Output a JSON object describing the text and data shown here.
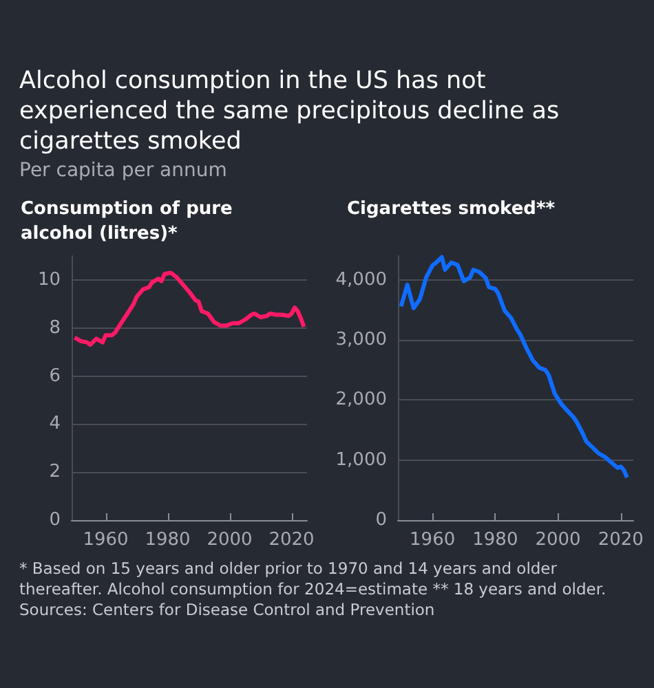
{
  "chart_data": [
    {
      "type": "line",
      "title": "Alcohol consumption in the US has not experienced the same precipitous decline as cigarettes smoked",
      "subtitle": "Per capita per annum",
      "ylabel": "Consumption of pure alcohol (litres)*",
      "color": "#ff1a66",
      "grid": "y",
      "xlim": [
        1949,
        2025
      ],
      "xticks": [
        1960,
        1980,
        2000,
        2020
      ],
      "ylim": [
        0,
        11
      ],
      "yticks": [
        0,
        2,
        4,
        6,
        8,
        10
      ],
      "x": [
        1950,
        1952,
        1954,
        1955,
        1957,
        1959,
        1960,
        1962,
        1963,
        1965,
        1967,
        1969,
        1970,
        1972,
        1974,
        1975,
        1977,
        1978,
        1979,
        1981,
        1983,
        1985,
        1987,
        1989,
        1990,
        1991,
        1993,
        1995,
        1997,
        1999,
        2001,
        2003,
        2005,
        2007,
        2008,
        2010,
        2012,
        2013,
        2015,
        2017,
        2019,
        2020,
        2021,
        2022,
        2023,
        2024
      ],
      "values": [
        7.6,
        7.45,
        7.4,
        7.3,
        7.55,
        7.4,
        7.7,
        7.7,
        7.8,
        8.2,
        8.6,
        9.0,
        9.3,
        9.6,
        9.7,
        9.9,
        10.05,
        9.95,
        10.25,
        10.3,
        10.1,
        9.8,
        9.5,
        9.15,
        9.1,
        8.7,
        8.6,
        8.25,
        8.1,
        8.1,
        8.2,
        8.2,
        8.35,
        8.55,
        8.6,
        8.45,
        8.5,
        8.6,
        8.55,
        8.55,
        8.5,
        8.6,
        8.85,
        8.7,
        8.4,
        8.05
      ]
    },
    {
      "type": "line",
      "ylabel": "Cigarettes smoked**",
      "color": "#0f6cff",
      "grid": "y",
      "xlim": [
        1949,
        2024
      ],
      "xticks": [
        1960,
        1980,
        2000,
        2020
      ],
      "ylim": [
        0,
        4400
      ],
      "yticks": [
        0,
        {
          "value": 1000,
          "label": "1,000"
        },
        {
          "value": 2000,
          "label": "2,000"
        },
        {
          "value": 3000,
          "label": "3,000"
        },
        {
          "value": 4000,
          "label": "4,000"
        }
      ],
      "x": [
        1950,
        1952,
        1954,
        1956,
        1958,
        1960,
        1961,
        1963,
        1964,
        1966,
        1968,
        1970,
        1972,
        1973,
        1975,
        1977,
        1978,
        1980,
        1981,
        1983,
        1985,
        1987,
        1988,
        1990,
        1992,
        1994,
        1996,
        1997,
        1998,
        1999,
        2001,
        2003,
        2005,
        2006,
        2008,
        2009,
        2011,
        2013,
        2015,
        2017,
        2019,
        2020,
        2021,
        2022
      ],
      "values": [
        3560,
        3920,
        3530,
        3680,
        4040,
        4240,
        4280,
        4380,
        4170,
        4290,
        4250,
        3980,
        4040,
        4170,
        4130,
        4030,
        3880,
        3850,
        3770,
        3490,
        3370,
        3170,
        3090,
        2860,
        2660,
        2540,
        2500,
        2420,
        2260,
        2100,
        1940,
        1820,
        1710,
        1630,
        1430,
        1310,
        1210,
        1110,
        1050,
        960,
        870,
        890,
        830,
        710
      ],
      "annotations": [
        "* Based on 15 years and older prior to 1970 and 14 years and older thereafter. Alcohol consumption for 2024=estimate ** 18 years and older.",
        "Sources: Centers for Disease Control and Prevention"
      ]
    }
  ]
}
